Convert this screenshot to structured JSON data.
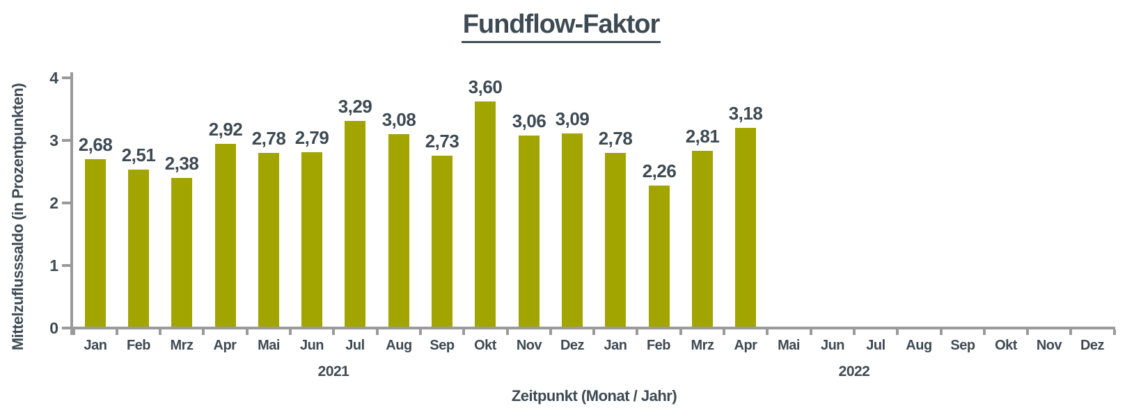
{
  "chart_data": {
    "type": "bar",
    "title": "Fundflow-Faktor",
    "xlabel": "Zeitpunkt (Monat / Jahr)",
    "ylabel": "Mittelzuflusssaldo (in Prozentpunkten)",
    "ylim": [
      0,
      4
    ],
    "ytick_values": [
      0,
      1,
      2,
      3,
      4
    ],
    "ytick_labels": [
      "0",
      "1",
      "2",
      "3",
      "4"
    ],
    "grid": false,
    "categories": [
      "Jan",
      "Feb",
      "Mrz",
      "Apr",
      "Mai",
      "Jun",
      "Jul",
      "Aug",
      "Sep",
      "Okt",
      "Nov",
      "Dez",
      "Jan",
      "Feb",
      "Mrz",
      "Apr",
      "Mai",
      "Jun",
      "Jul",
      "Aug",
      "Sep",
      "Okt",
      "Nov",
      "Dez"
    ],
    "year_groups": [
      {
        "label": "2021",
        "start": 0,
        "end": 11
      },
      {
        "label": "2022",
        "start": 12,
        "end": 23
      }
    ],
    "values": [
      2.68,
      2.51,
      2.38,
      2.92,
      2.78,
      2.79,
      3.29,
      3.08,
      2.73,
      3.6,
      3.06,
      3.09,
      2.78,
      2.26,
      2.81,
      3.18,
      null,
      null,
      null,
      null,
      null,
      null,
      null,
      null
    ],
    "value_labels": [
      "2,68",
      "2,51",
      "2,38",
      "2,92",
      "2,78",
      "2,79",
      "3,29",
      "3,08",
      "2,73",
      "3,60",
      "3,06",
      "3,09",
      "2,78",
      "2,26",
      "2,81",
      "3,18"
    ],
    "colors": {
      "bar": "#a2a400",
      "text": "#3e4a53",
      "axis": "#9a9a9a"
    }
  }
}
